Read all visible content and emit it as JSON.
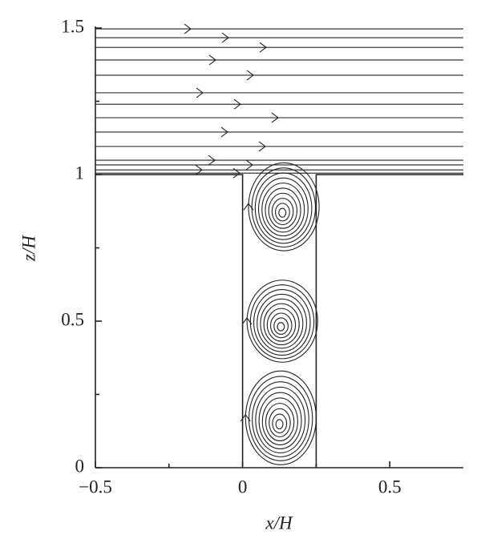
{
  "chart_data": {
    "type": "streamline",
    "xlabel": "x/H",
    "ylabel": "z/H",
    "xlim": [
      -0.5,
      0.75
    ],
    "ylim": [
      0,
      1.5
    ],
    "xticks": [
      {
        "value": -0.5,
        "label": "−0.5"
      },
      0,
      0.5
    ],
    "xminorticks": [
      -0.25,
      0.25
    ],
    "yticks": [
      0,
      0.5,
      1,
      1.5
    ],
    "yminorticks": [
      0.25,
      0.75,
      1.25
    ],
    "canyon": {
      "x": [
        0,
        0.25
      ],
      "z": [
        0,
        1
      ]
    },
    "streamlines_z": [
      1.497,
      1.467,
      1.434,
      1.391,
      1.339,
      1.279,
      1.24,
      1.194,
      1.145,
      1.096,
      1.049,
      1.033,
      1.016,
      1.005
    ],
    "vortices": [
      {
        "x": 0.14,
        "z": 0.89,
        "rx": 0.12,
        "rz": 0.15
      },
      {
        "x": 0.135,
        "z": 0.5,
        "rx": 0.12,
        "rz": 0.14
      },
      {
        "x": 0.13,
        "z": 0.17,
        "rx": 0.12,
        "rz": 0.16
      }
    ],
    "color": "#222222"
  }
}
